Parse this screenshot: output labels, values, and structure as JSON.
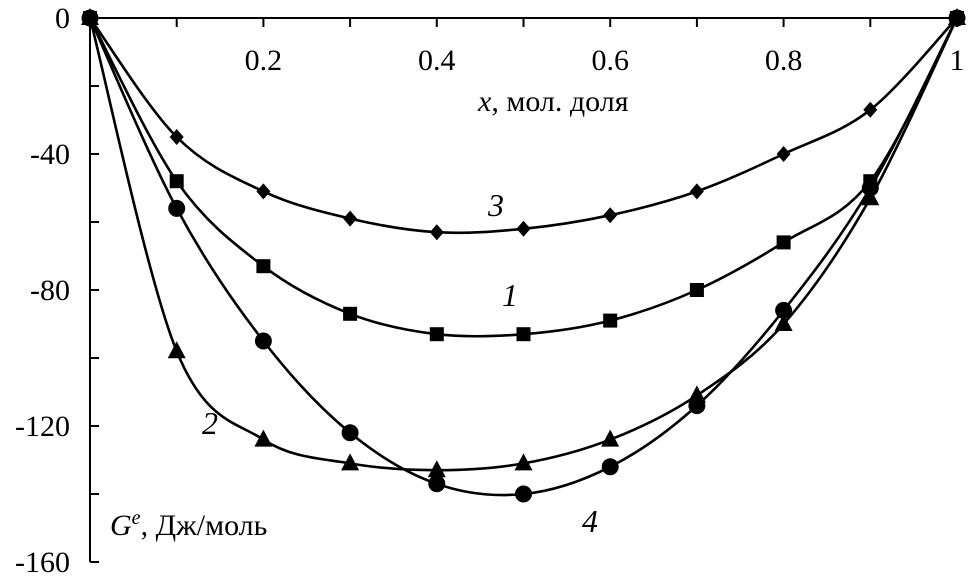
{
  "chart_data": {
    "type": "line",
    "xlabel": {
      "var": "x",
      "rest": ", мол. доля"
    },
    "ylabel": {
      "var": "G",
      "sup": "e",
      "rest": ", Дж/моль"
    },
    "xlim": [
      0,
      1
    ],
    "ylim": [
      -160,
      0
    ],
    "x_ticks": [
      {
        "value": 0.2,
        "label": "0.2"
      },
      {
        "value": 0.4,
        "label": "0.4"
      },
      {
        "value": 0.6,
        "label": "0.6"
      },
      {
        "value": 0.8,
        "label": "0.8"
      },
      {
        "value": 1.0,
        "label": "1"
      }
    ],
    "y_ticks": [
      {
        "value": 0,
        "label": "0"
      },
      {
        "value": -40,
        "label": "-40"
      },
      {
        "value": -80,
        "label": "-80"
      },
      {
        "value": -120,
        "label": "-120"
      },
      {
        "value": -160,
        "label": "-160"
      }
    ],
    "grid": false,
    "series": [
      {
        "label": "1",
        "marker": "square",
        "x": [
          0,
          0.1,
          0.2,
          0.3,
          0.4,
          0.5,
          0.6,
          0.7,
          0.8,
          0.9,
          1.0
        ],
        "y": [
          0,
          -48,
          -73,
          -87,
          -93,
          -93,
          -89,
          -80,
          -66,
          -48,
          0
        ]
      },
      {
        "label": "2",
        "marker": "triangle",
        "x": [
          0,
          0.1,
          0.2,
          0.3,
          0.4,
          0.5,
          0.6,
          0.7,
          0.8,
          0.9,
          1.0
        ],
        "y": [
          0,
          -98,
          -124,
          -131,
          -133,
          -131,
          -124,
          -111,
          -90,
          -53,
          0
        ]
      },
      {
        "label": "3",
        "marker": "diamond",
        "x": [
          0,
          0.1,
          0.2,
          0.3,
          0.4,
          0.5,
          0.6,
          0.7,
          0.8,
          0.9,
          1.0
        ],
        "y": [
          0,
          -35,
          -51,
          -59,
          -63,
          -62,
          -58,
          -51,
          -40,
          -27,
          0
        ]
      },
      {
        "label": "4",
        "marker": "circle",
        "x": [
          0,
          0.1,
          0.2,
          0.3,
          0.4,
          0.5,
          0.6,
          0.7,
          0.8,
          0.9,
          1.0
        ],
        "y": [
          0,
          -56,
          -95,
          -122,
          -137,
          -140,
          -132,
          -114,
          -86,
          -50,
          0
        ]
      }
    ]
  }
}
